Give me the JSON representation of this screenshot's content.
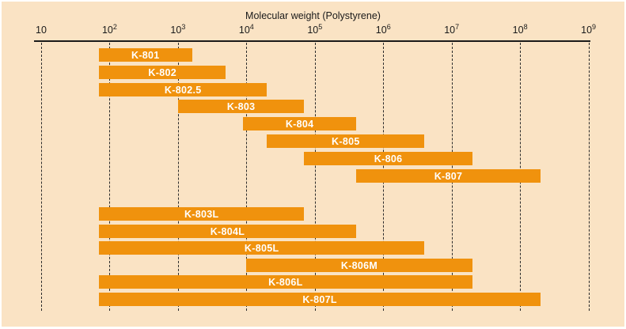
{
  "chart_data": {
    "type": "bar",
    "orientation": "horizontal-range",
    "title": "Molecular weight (Polystyrene)",
    "x_axis": {
      "scale": "log",
      "min": 10,
      "max": 1000000000,
      "tick_base": "10",
      "tick_exponents": [
        1,
        2,
        3,
        4,
        5,
        6,
        7,
        8,
        9
      ],
      "grid": "dashed-vertical"
    },
    "colors": {
      "bar": "#F0920D",
      "bar_label": "#FFFFFF",
      "background": "#FAE3C4",
      "axis": "#1A1A1A",
      "gridline": "#2B2B2B"
    },
    "groups": [
      {
        "bars": [
          {
            "label": "K-801",
            "min": 70,
            "max": 1600
          },
          {
            "label": "K-802",
            "min": 70,
            "max": 5000
          },
          {
            "label": "K-802.5",
            "min": 70,
            "max": 20000
          },
          {
            "label": "K-803",
            "min": 1000,
            "max": 70000
          },
          {
            "label": "K-804",
            "min": 9000,
            "max": 400000
          },
          {
            "label": "K-805",
            "min": 20000,
            "max": 4000000
          },
          {
            "label": "K-806",
            "min": 70000,
            "max": 20000000
          },
          {
            "label": "K-807",
            "min": 400000,
            "max": 200000000
          }
        ]
      },
      {
        "bars": [
          {
            "label": "K-803L",
            "min": 70,
            "max": 70000
          },
          {
            "label": "K-804L",
            "min": 70,
            "max": 400000
          },
          {
            "label": "K-805L",
            "min": 70,
            "max": 4000000
          },
          {
            "label": "K-806M",
            "min": 10000,
            "max": 20000000
          },
          {
            "label": "K-806L",
            "min": 70,
            "max": 20000000
          },
          {
            "label": "K-807L",
            "min": 70,
            "max": 200000000
          }
        ]
      }
    ]
  }
}
